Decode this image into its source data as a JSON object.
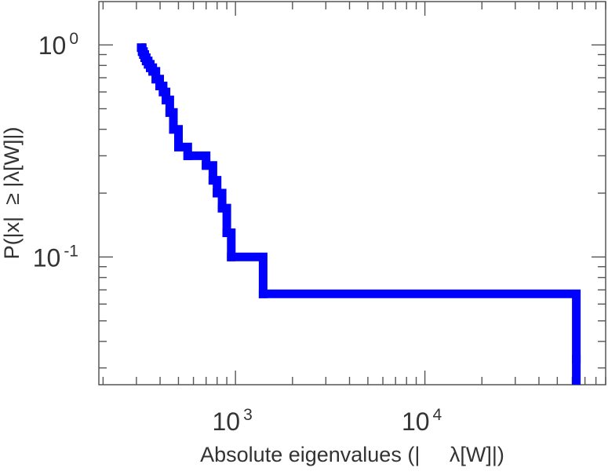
{
  "chart_data": {
    "type": "line",
    "title": "",
    "xlabel": "Absolute eigenvalues (|     λ[W]|)",
    "ylabel": "P(|x|  ≥ |λ[W]|)",
    "xscale": "log",
    "yscale": "log",
    "xlim": [
      190,
      90000
    ],
    "ylim": [
      0.025,
      1.6
    ],
    "grid": false,
    "legend": "none",
    "line_color": "#0000ff",
    "x_ticks": [
      {
        "value": 1000,
        "base": "10",
        "exp": "3"
      },
      {
        "value": 10000,
        "base": "10",
        "exp": "4"
      }
    ],
    "y_ticks": [
      {
        "value": 1,
        "base": "10",
        "exp": "0"
      },
      {
        "value": 0.1,
        "base": "10",
        "exp": "-1"
      }
    ],
    "series": [
      {
        "style": "step",
        "x": [
          318,
          322,
          327,
          332,
          338,
          346,
          355,
          366,
          380,
          398,
          415,
          430,
          450,
          470,
          500,
          560,
          700,
          760,
          800,
          850,
          900,
          950,
          1400,
          63000
        ],
        "y": [
          0.97,
          0.93,
          0.9,
          0.87,
          0.84,
          0.81,
          0.78,
          0.75,
          0.69,
          0.64,
          0.6,
          0.55,
          0.48,
          0.4,
          0.33,
          0.3,
          0.27,
          0.23,
          0.2,
          0.17,
          0.13,
          0.1,
          0.067,
          0.033
        ],
        "end_y": 0.025
      }
    ]
  }
}
